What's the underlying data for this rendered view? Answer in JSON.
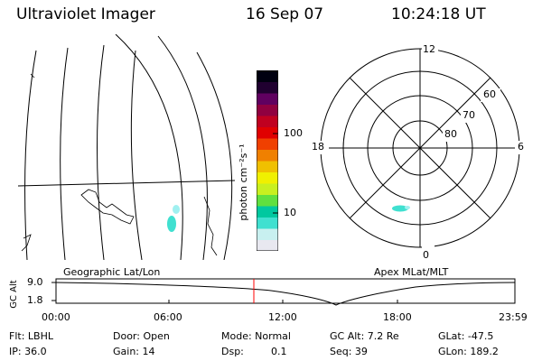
{
  "header": {
    "title": "Ultraviolet Imager",
    "date": "16 Sep 07",
    "time": "10:24:18 UT"
  },
  "colorbar": {
    "unit_label": "photon cm⁻²s⁻¹",
    "tick_100": "100",
    "tick_10": "10",
    "colors": [
      "#e8e8f0",
      "#c8f0f0",
      "#40e0d0",
      "#00c8a0",
      "#60e040",
      "#c8f020",
      "#f0f000",
      "#f0c000",
      "#f08000",
      "#f04000",
      "#e00000",
      "#c00020",
      "#900040",
      "#600060",
      "#200030",
      "#000010"
    ]
  },
  "geo_panel": {
    "label": "Geographic Lat/Lon"
  },
  "polar_panel": {
    "label": "Apex MLat/MLT",
    "mlt_labels": {
      "top": "12",
      "bottom": "0",
      "left": "18",
      "right": "6"
    },
    "lat_labels": [
      "60",
      "70",
      "80"
    ]
  },
  "altitude_plot": {
    "ylabel": "GC Alt",
    "y_top": "9.0",
    "y_bottom": "1.8",
    "x_ticks": [
      "00:00",
      "06:00",
      "12:00",
      "18:00",
      "23:59"
    ]
  },
  "footer": {
    "filter": "Flt: LBHL",
    "ip": "IP: 36.0",
    "door": "Door: Open",
    "gain": "Gain: 14",
    "mode": "Mode: Normal",
    "dsp": "Dsp:",
    "dsp_value": "0.1",
    "gc_alt": "GC Alt: 7.2 Re",
    "seq": "Seq: 39",
    "glat": "GLat: -47.5",
    "glon": "GLon: 189.2"
  }
}
